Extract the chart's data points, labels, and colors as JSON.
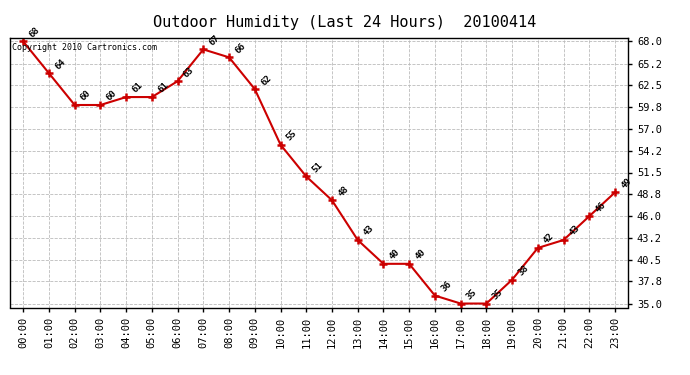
{
  "title": "Outdoor Humidity (Last 24 Hours)  20100414",
  "copyright_text": "Copyright 2010 Cartronics.com",
  "x_labels": [
    "00:00",
    "01:00",
    "02:00",
    "03:00",
    "04:00",
    "05:00",
    "06:00",
    "07:00",
    "08:00",
    "09:00",
    "10:00",
    "11:00",
    "12:00",
    "13:00",
    "14:00",
    "15:00",
    "16:00",
    "17:00",
    "18:00",
    "19:00",
    "20:00",
    "21:00",
    "22:00",
    "23:00"
  ],
  "y_values": [
    68,
    64,
    60,
    60,
    61,
    61,
    63,
    67,
    66,
    62,
    55,
    51,
    48,
    43,
    40,
    40,
    36,
    35,
    35,
    38,
    42,
    43,
    46,
    49
  ],
  "line_color": "#cc0000",
  "marker_color": "#cc0000",
  "background_color": "#ffffff",
  "grid_color": "#bbbbbb",
  "yticks": [
    35.0,
    37.8,
    40.5,
    43.2,
    46.0,
    48.8,
    51.5,
    54.2,
    57.0,
    59.8,
    62.5,
    65.2,
    68.0
  ],
  "ylim": [
    34.5,
    68.5
  ],
  "title_fontsize": 11,
  "annotation_fontsize": 6.5,
  "tick_fontsize": 7.5,
  "copyright_fontsize": 6
}
